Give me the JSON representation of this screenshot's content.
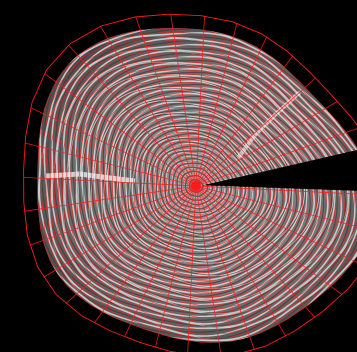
{
  "image": {
    "subject": "tree-trunk-cross-section-ring-annotation",
    "colors": {
      "background": "#000000",
      "wood_light": "#d9d9d9",
      "wood_dark": "#3a3a3a",
      "annotation": "#ff1a1a"
    },
    "ring_count": 38,
    "radial_line_count": 32
  }
}
